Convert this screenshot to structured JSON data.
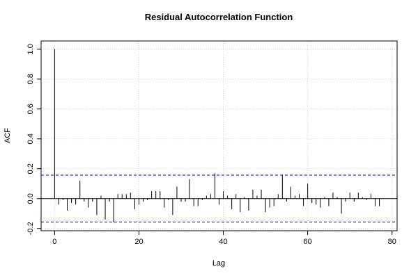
{
  "chart_data": {
    "type": "bar",
    "title": "Residual Autocorrelation Function",
    "xlabel": "Lag",
    "ylabel": "ACF",
    "xlim": [
      0,
      81
    ],
    "ylim": [
      -0.2,
      1.0
    ],
    "x_ticks": [
      0,
      20,
      40,
      60,
      80
    ],
    "y_ticks": [
      -0.2,
      0.0,
      0.2,
      0.4,
      0.6,
      0.8,
      1.0
    ],
    "grid": true,
    "confidence_bounds": [
      0.157,
      -0.157
    ],
    "lags": [
      0,
      1,
      2,
      3,
      4,
      5,
      6,
      7,
      8,
      9,
      10,
      11,
      12,
      13,
      14,
      15,
      16,
      17,
      18,
      19,
      20,
      21,
      22,
      23,
      24,
      25,
      26,
      27,
      28,
      29,
      30,
      31,
      32,
      33,
      34,
      35,
      36,
      37,
      38,
      39,
      40,
      41,
      42,
      43,
      44,
      45,
      46,
      47,
      48,
      49,
      50,
      51,
      52,
      53,
      54,
      55,
      56,
      57,
      58,
      59,
      60,
      61,
      62,
      63,
      64,
      65,
      66,
      67,
      68,
      69,
      70,
      71,
      72,
      73,
      74,
      75,
      76,
      77
    ],
    "values": [
      1.0,
      -0.04,
      -0.01,
      -0.08,
      -0.03,
      -0.04,
      0.12,
      -0.02,
      -0.06,
      -0.02,
      -0.11,
      0.02,
      -0.14,
      -0.02,
      -0.16,
      0.03,
      0.03,
      0.03,
      0.04,
      -0.07,
      -0.04,
      -0.02,
      -0.01,
      0.05,
      0.05,
      0.05,
      -0.06,
      -0.01,
      -0.11,
      0.08,
      -0.02,
      -0.02,
      0.13,
      -0.05,
      -0.05,
      -0.01,
      0.02,
      0.03,
      0.17,
      -0.04,
      0.05,
      0.02,
      -0.07,
      0.03,
      -0.09,
      0.01,
      -0.08,
      0.06,
      0.02,
      0.06,
      -0.09,
      -0.06,
      -0.05,
      0.03,
      0.16,
      -0.02,
      0.08,
      0.02,
      0.03,
      -0.05,
      0.1,
      -0.03,
      -0.04,
      -0.06,
      0.01,
      -0.05,
      0.04,
      0.01,
      -0.1,
      -0.02,
      0.04,
      -0.02,
      0.04,
      0.01,
      -0.01,
      0.03,
      -0.05,
      -0.05
    ],
    "colors": {
      "lines": "#000000",
      "bounds": "#0000ff",
      "grid": "#d3d3d3",
      "frame": "#000000"
    }
  }
}
